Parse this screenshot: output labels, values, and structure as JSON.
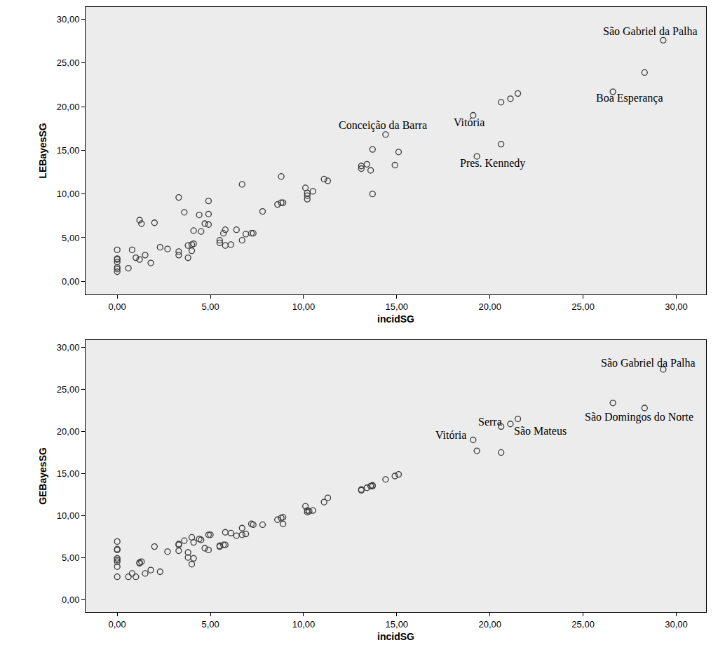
{
  "chart_data": [
    {
      "type": "scatter",
      "x_label": "incidSG",
      "y_label": "LEBayesSG",
      "color": "#3a3a3a",
      "marker": "open-circle",
      "grid": false,
      "x": [
        0,
        0,
        0,
        0,
        0,
        0,
        0,
        0.6,
        0.8,
        1.0,
        1.2,
        1.3,
        1.2,
        1.5,
        1.8,
        2.0,
        2.3,
        2.7,
        3.3,
        3.3,
        3.3,
        3.6,
        3.8,
        3.8,
        4.0,
        4.0,
        4.1,
        4.1,
        4.4,
        4.5,
        4.7,
        4.9,
        4.9,
        4.9,
        5.5,
        5.5,
        5.7,
        5.8,
        5.8,
        6.1,
        6.4,
        6.7,
        6.7,
        6.9,
        7.2,
        7.3,
        7.8,
        8.6,
        8.8,
        8.9,
        8.8,
        10.1,
        10.2,
        10.2,
        10.2,
        10.5,
        11.1,
        11.3,
        13.1,
        13.1,
        13.4,
        13.6,
        13.7,
        13.7,
        14.4,
        14.9,
        15.1,
        19.1,
        19.3,
        20.6,
        20.6,
        21.1,
        21.5,
        26.6,
        28.3,
        29.3
      ],
      "values": [
        3.6,
        2.6,
        2.5,
        2.2,
        1.6,
        1.4,
        1.1,
        1.5,
        3.6,
        2.7,
        7.0,
        6.6,
        2.5,
        3.0,
        2.1,
        6.7,
        3.9,
        3.7,
        3.4,
        3.0,
        9.6,
        7.9,
        4.1,
        2.7,
        4.2,
        3.5,
        5.8,
        4.3,
        7.6,
        5.7,
        6.6,
        7.7,
        9.2,
        6.5,
        4.7,
        4.4,
        5.5,
        5.9,
        4.1,
        4.2,
        5.9,
        4.7,
        11.1,
        5.4,
        5.5,
        5.5,
        8.0,
        8.8,
        9.0,
        9.0,
        12.0,
        10.7,
        10.1,
        9.8,
        9.4,
        10.3,
        11.7,
        11.5,
        13.2,
        12.9,
        13.4,
        12.7,
        15.1,
        10.0,
        16.8,
        13.3,
        14.8,
        19.0,
        14.3,
        20.5,
        15.7,
        20.9,
        21.5,
        21.7,
        23.9,
        27.6
      ],
      "xlim": [
        -1.7,
        31.6
      ],
      "ylim": [
        -1.5,
        31.4
      ],
      "xticks": [
        {
          "value": 0,
          "label": "0,00"
        },
        {
          "value": 5,
          "label": "5,00"
        },
        {
          "value": 10,
          "label": "10,00"
        },
        {
          "value": 15,
          "label": "15,00"
        },
        {
          "value": 20,
          "label": "20,00"
        },
        {
          "value": 25,
          "label": "25,00"
        },
        {
          "value": 30,
          "label": "30,00"
        }
      ],
      "yticks": [
        {
          "value": 0,
          "label": "0,00"
        },
        {
          "value": 5,
          "label": "5,00"
        },
        {
          "value": 10,
          "label": "10,00"
        },
        {
          "value": 15,
          "label": "15,00"
        },
        {
          "value": 20,
          "label": "20,00"
        },
        {
          "value": 25,
          "label": "25,00"
        },
        {
          "value": 30,
          "label": "30,00"
        }
      ],
      "annotations": [
        {
          "text": "São Gabriel da Palha",
          "x": 28.6,
          "y": 28.6
        },
        {
          "text": "Boa Esperança",
          "x": 27.5,
          "y": 21.0
        },
        {
          "text": "Conceição da Barra",
          "x": 14.25,
          "y": 17.8
        },
        {
          "text": "Vitória",
          "x": 18.9,
          "y": 18.2
        },
        {
          "text": "Pres. Kennedy",
          "x": 20.15,
          "y": 13.5
        }
      ]
    },
    {
      "type": "scatter",
      "x_label": "incidSG",
      "y_label": "GEBayesSG",
      "color": "#3a3a3a",
      "marker": "open-circle",
      "grid": false,
      "x": [
        0,
        0,
        0,
        0,
        0,
        0,
        0,
        0,
        0.6,
        0.8,
        1.0,
        1.2,
        1.3,
        1.2,
        1.5,
        1.8,
        2.0,
        2.3,
        2.7,
        3.3,
        3.3,
        3.3,
        3.6,
        3.8,
        3.8,
        4.0,
        4.0,
        4.1,
        4.1,
        4.4,
        4.5,
        4.7,
        4.9,
        5.0,
        4.9,
        5.5,
        5.5,
        5.7,
        5.8,
        5.8,
        6.1,
        6.4,
        6.7,
        6.7,
        6.9,
        7.2,
        7.3,
        7.8,
        8.6,
        8.8,
        8.9,
        8.9,
        10.1,
        10.2,
        10.2,
        10.3,
        10.5,
        11.1,
        11.3,
        13.1,
        13.1,
        13.4,
        13.6,
        13.7,
        13.7,
        14.4,
        14.9,
        15.1,
        19.1,
        19.3,
        20.6,
        20.6,
        21.1,
        21.5,
        26.6,
        28.3,
        29.3
      ],
      "values": [
        6.9,
        6.0,
        5.9,
        4.9,
        4.7,
        4.5,
        3.9,
        2.7,
        2.7,
        3.1,
        2.7,
        4.4,
        4.5,
        4.3,
        3.1,
        3.5,
        6.3,
        3.3,
        5.7,
        6.6,
        5.8,
        6.5,
        7.0,
        5.6,
        5.0,
        7.4,
        4.2,
        4.9,
        6.8,
        7.2,
        7.1,
        6.1,
        7.7,
        7.7,
        5.9,
        6.4,
        6.3,
        6.5,
        6.5,
        8.0,
        7.9,
        7.6,
        8.5,
        7.7,
        7.8,
        9.0,
        8.9,
        8.9,
        9.5,
        9.7,
        9.8,
        9.0,
        11.1,
        10.6,
        10.4,
        10.5,
        10.6,
        11.6,
        12.1,
        13.1,
        13.0,
        13.3,
        13.5,
        13.6,
        13.5,
        14.3,
        14.7,
        14.9,
        19.0,
        17.7,
        20.6,
        17.5,
        20.9,
        21.5,
        23.4,
        22.8,
        27.4
      ],
      "xlim": [
        -1.7,
        31.6
      ],
      "ylim": [
        -1.5,
        30.9
      ],
      "xticks": [
        {
          "value": 0,
          "label": "0,00"
        },
        {
          "value": 5,
          "label": "5,00"
        },
        {
          "value": 10,
          "label": "10,00"
        },
        {
          "value": 15,
          "label": "15,00"
        },
        {
          "value": 20,
          "label": "20,00"
        },
        {
          "value": 25,
          "label": "25,00"
        },
        {
          "value": 30,
          "label": "30,00"
        }
      ],
      "yticks": [
        {
          "value": 0,
          "label": "0,00"
        },
        {
          "value": 5,
          "label": "5,00"
        },
        {
          "value": 10,
          "label": "10,00"
        },
        {
          "value": 15,
          "label": "15,00"
        },
        {
          "value": 20,
          "label": "20,00"
        },
        {
          "value": 25,
          "label": "25,00"
        },
        {
          "value": 30,
          "label": "30,00"
        }
      ],
      "annotations": [
        {
          "text": "São Gabriel da Palha",
          "x": 28.5,
          "y": 28.2
        },
        {
          "text": "São Domingos do Norte",
          "x": 28.0,
          "y": 21.7
        },
        {
          "text": "Serra",
          "x": 20.0,
          "y": 21.2
        },
        {
          "text": "São Mateus",
          "x": 22.7,
          "y": 20.1
        },
        {
          "text": "Vitória",
          "x": 17.9,
          "y": 19.6
        }
      ]
    }
  ]
}
